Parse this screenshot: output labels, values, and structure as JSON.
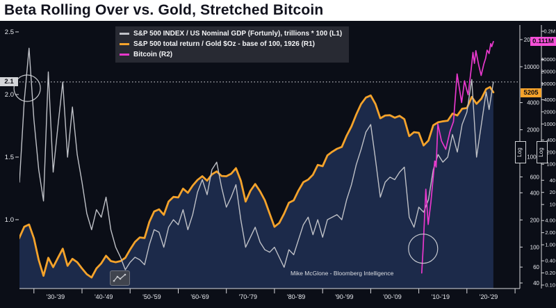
{
  "title": "Beta Rolling Over vs. Gold, Stretched Bitcoin",
  "attribution": "Mike McGlone - Bloomberg Intelligence",
  "colors": {
    "background": "#0b0e17",
    "title_bg": "#ffffff",
    "title_fg": "#12131e",
    "area_fill": "#1c2a4a",
    "gray_line": "#bfc1c7",
    "orange_line": "#f5a32b",
    "magenta_line": "#e838cc",
    "badge_left_bg": "#d4d5d9",
    "badge_r1_bg": "#f5a32b",
    "badge_r2_bg": "#f650d8",
    "axis_text": "#e9ebf0"
  },
  "legend": {
    "items": [
      {
        "label": "S&P 500 INDEX / US Nominal GDP (Fortunly), trillions * 100 (L1)",
        "color": "#bfc1c7"
      },
      {
        "label": "S&P 500 total return / Gold $Oz - base of 100, 1926 (R1)",
        "color": "#f5a32b"
      },
      {
        "label": "Bitcoin (R2)",
        "color": "#e838cc"
      }
    ]
  },
  "badges": {
    "left_value": "2.1",
    "r1_value": "5205",
    "r2_value": "0.111M"
  },
  "chart_data": {
    "type": "line",
    "title": "Beta Rolling Over vs. Gold, Stretched Bitcoin",
    "x_axis": {
      "domain": [
        1927,
        2031
      ],
      "ticks": [
        "'30-'39",
        "'40-'49",
        "'50-'59",
        "'60-'69",
        "'70-'79",
        "'80-'89",
        "'90-'99",
        "'00-'09",
        "'10-'19",
        "'20-'29"
      ],
      "tick_center_years": [
        1934.5,
        1944.5,
        1954.5,
        1964.5,
        1974.5,
        1984.5,
        1994.5,
        2004.5,
        2014.5,
        2024.5
      ],
      "boundary_years": [
        1930,
        1940,
        1950,
        1960,
        1970,
        1980,
        1990,
        2000,
        2010,
        2020,
        2030
      ]
    },
    "axes": {
      "left": {
        "scale": "linear",
        "domain": [
          0.45,
          2.555
        ],
        "ticks": [
          {
            "label": "2.5",
            "value": 2.5
          },
          {
            "label": "2.0",
            "value": 2.0
          },
          {
            "label": "1.5",
            "value": 1.5
          },
          {
            "label": "1.0",
            "value": 1.0
          }
        ]
      },
      "right1": {
        "scale": "log",
        "domain": [
          34.7,
          29000
        ],
        "scale_label": "Log",
        "ticks": [
          {
            "label": "20000",
            "value": 20000
          },
          {
            "label": "10000",
            "value": 10000
          },
          {
            "label": "4000",
            "value": 4000
          },
          {
            "label": "2000",
            "value": 2000
          },
          {
            "label": "1000",
            "value": 1000
          },
          {
            "label": "600",
            "value": 600
          },
          {
            "label": "400",
            "value": 400
          },
          {
            "label": "200",
            "value": 200
          },
          {
            "label": "100",
            "value": 100
          },
          {
            "label": "60",
            "value": 60
          },
          {
            "label": "40",
            "value": 40
          }
        ]
      },
      "right2": {
        "scale": "log",
        "domain": [
          0.082,
          286000
        ],
        "scale_label": "Log",
        "ticks": [
          {
            "label": "0.2M",
            "value": 200000
          },
          {
            "label": "40000",
            "value": 40000
          },
          {
            "label": "20000",
            "value": 20000
          },
          {
            "label": "10000",
            "value": 10000
          },
          {
            "label": "4000",
            "value": 4000
          },
          {
            "label": "2000",
            "value": 2000
          },
          {
            "label": "1000",
            "value": 1000
          },
          {
            "label": "400",
            "value": 400
          },
          {
            "label": "200",
            "value": 200
          },
          {
            "label": "100",
            "value": 100
          },
          {
            "label": "40",
            "value": 40
          },
          {
            "label": "20",
            "value": 20
          },
          {
            "label": "10",
            "value": 10
          },
          {
            "label": "4.00",
            "value": 4
          },
          {
            "label": "2.00",
            "value": 2
          },
          {
            "label": "1.00",
            "value": 1
          },
          {
            "label": "0.40",
            "value": 0.4
          },
          {
            "label": "0.20",
            "value": 0.2
          },
          {
            "label": "0.10",
            "value": 0.1
          }
        ]
      }
    },
    "reference_line": {
      "axis": "left",
      "value": 2.1,
      "style": "dotted",
      "color": "#e4e5e9"
    },
    "annotations": [
      {
        "type": "circle",
        "axis": "left",
        "year": 1928.6,
        "value": 2.05,
        "radius": 19
      },
      {
        "type": "circle",
        "axis": "right2",
        "year": 2010.9,
        "value": 0.8,
        "radius": 21
      }
    ],
    "last_values": {
      "left": "2.1",
      "right1": "5205",
      "right2": "0.111M"
    },
    "series": [
      {
        "id": "gold_ratio",
        "name": "S&P 500 total return / Gold $Oz - base of 100, 1926",
        "axis": "right1",
        "color": "#f5a32b",
        "width": 2.8,
        "fill": "#1c2a4a",
        "points": [
          [
            1926,
            100
          ],
          [
            1927,
            128
          ],
          [
            1928,
            168
          ],
          [
            1929,
            178
          ],
          [
            1930,
            125
          ],
          [
            1931,
            72
          ],
          [
            1932,
            48
          ],
          [
            1933,
            76
          ],
          [
            1934,
            60
          ],
          [
            1935,
            76
          ],
          [
            1936,
            96
          ],
          [
            1937,
            62
          ],
          [
            1938,
            74
          ],
          [
            1939,
            68
          ],
          [
            1940,
            58
          ],
          [
            1941,
            50
          ],
          [
            1942,
            46
          ],
          [
            1943,
            58
          ],
          [
            1944,
            66
          ],
          [
            1945,
            80
          ],
          [
            1946,
            70
          ],
          [
            1947,
            68
          ],
          [
            1948,
            70
          ],
          [
            1949,
            76
          ],
          [
            1950,
            94
          ],
          [
            1951,
            114
          ],
          [
            1952,
            128
          ],
          [
            1953,
            126
          ],
          [
            1954,
            190
          ],
          [
            1955,
            248
          ],
          [
            1956,
            262
          ],
          [
            1957,
            228
          ],
          [
            1958,
            320
          ],
          [
            1959,
            360
          ],
          [
            1960,
            355
          ],
          [
            1961,
            445
          ],
          [
            1962,
            400
          ],
          [
            1963,
            480
          ],
          [
            1964,
            555
          ],
          [
            1965,
            610
          ],
          [
            1966,
            545
          ],
          [
            1967,
            640
          ],
          [
            1968,
            690
          ],
          [
            1969,
            615
          ],
          [
            1970,
            610
          ],
          [
            1971,
            650
          ],
          [
            1972,
            750
          ],
          [
            1973,
            545
          ],
          [
            1974,
            320
          ],
          [
            1975,
            420
          ],
          [
            1976,
            500
          ],
          [
            1977,
            415
          ],
          [
            1978,
            330
          ],
          [
            1979,
            235
          ],
          [
            1980,
            168
          ],
          [
            1981,
            185
          ],
          [
            1982,
            235
          ],
          [
            1983,
            310
          ],
          [
            1984,
            330
          ],
          [
            1985,
            425
          ],
          [
            1986,
            525
          ],
          [
            1987,
            560
          ],
          [
            1988,
            635
          ],
          [
            1989,
            815
          ],
          [
            1990,
            790
          ],
          [
            1991,
            1040
          ],
          [
            1992,
            1140
          ],
          [
            1993,
            1230
          ],
          [
            1994,
            1290
          ],
          [
            1995,
            1720
          ],
          [
            1996,
            2180
          ],
          [
            1997,
            2950
          ],
          [
            1998,
            3850
          ],
          [
            1999,
            4550
          ],
          [
            2000,
            4800
          ],
          [
            2001,
            3850
          ],
          [
            2002,
            2680
          ],
          [
            2003,
            2880
          ],
          [
            2004,
            2900
          ],
          [
            2005,
            2720
          ],
          [
            2006,
            2850
          ],
          [
            2007,
            2620
          ],
          [
            2008,
            1700
          ],
          [
            2009,
            1880
          ],
          [
            2010,
            1850
          ],
          [
            2011,
            1340
          ],
          [
            2012,
            1520
          ],
          [
            2013,
            2240
          ],
          [
            2014,
            2420
          ],
          [
            2015,
            2480
          ],
          [
            2016,
            2520
          ],
          [
            2017,
            3020
          ],
          [
            2018,
            2880
          ],
          [
            2019,
            3420
          ],
          [
            2020,
            3480
          ],
          [
            2021,
            4620
          ],
          [
            2022,
            3880
          ],
          [
            2023,
            4420
          ],
          [
            2024,
            5650
          ],
          [
            2024.8,
            5950
          ],
          [
            2025.5,
            5205
          ]
        ]
      },
      {
        "id": "beta",
        "name": "S&P 500 INDEX / US Nominal GDP (Fortunly), trillions * 100",
        "axis": "left",
        "color": "#bfc1c7",
        "width": 1.4,
        "points": [
          [
            1927,
            1.3
          ],
          [
            1928,
            1.95
          ],
          [
            1929,
            2.37
          ],
          [
            1930,
            1.8
          ],
          [
            1931,
            1.4
          ],
          [
            1932,
            1.15
          ],
          [
            1933,
            2.18
          ],
          [
            1934,
            1.38
          ],
          [
            1935,
            1.75
          ],
          [
            1936,
            2.1
          ],
          [
            1937,
            1.5
          ],
          [
            1938,
            1.9
          ],
          [
            1939,
            1.52
          ],
          [
            1940,
            1.3
          ],
          [
            1941,
            1.05
          ],
          [
            1942,
            0.92
          ],
          [
            1943,
            1.08
          ],
          [
            1944,
            1.02
          ],
          [
            1945,
            1.18
          ],
          [
            1946,
            0.92
          ],
          [
            1947,
            0.78
          ],
          [
            1948,
            0.7
          ],
          [
            1949,
            0.6
          ],
          [
            1950,
            0.66
          ],
          [
            1951,
            0.7
          ],
          [
            1952,
            0.68
          ],
          [
            1953,
            0.64
          ],
          [
            1954,
            0.8
          ],
          [
            1955,
            0.92
          ],
          [
            1956,
            0.9
          ],
          [
            1957,
            0.78
          ],
          [
            1958,
            0.94
          ],
          [
            1959,
            1.0
          ],
          [
            1960,
            0.96
          ],
          [
            1961,
            1.08
          ],
          [
            1962,
            0.92
          ],
          [
            1963,
            1.04
          ],
          [
            1964,
            1.22
          ],
          [
            1965,
            1.32
          ],
          [
            1966,
            1.2
          ],
          [
            1967,
            1.4
          ],
          [
            1968,
            1.46
          ],
          [
            1969,
            1.26
          ],
          [
            1970,
            1.1
          ],
          [
            1971,
            1.18
          ],
          [
            1972,
            1.28
          ],
          [
            1973,
            1.0
          ],
          [
            1974,
            0.78
          ],
          [
            1975,
            0.86
          ],
          [
            1976,
            0.94
          ],
          [
            1977,
            0.82
          ],
          [
            1978,
            0.76
          ],
          [
            1979,
            0.74
          ],
          [
            1980,
            0.78
          ],
          [
            1981,
            0.7
          ],
          [
            1982,
            0.62
          ],
          [
            1983,
            0.76
          ],
          [
            1984,
            0.72
          ],
          [
            1985,
            0.84
          ],
          [
            1986,
            0.96
          ],
          [
            1987,
            1.02
          ],
          [
            1988,
            0.88
          ],
          [
            1989,
            1.0
          ],
          [
            1990,
            0.86
          ],
          [
            1991,
            1.0
          ],
          [
            1992,
            1.02
          ],
          [
            1993,
            1.04
          ],
          [
            1994,
            1.0
          ],
          [
            1995,
            1.16
          ],
          [
            1996,
            1.28
          ],
          [
            1997,
            1.44
          ],
          [
            1998,
            1.56
          ],
          [
            1999,
            1.7
          ],
          [
            2000,
            1.76
          ],
          [
            2001,
            1.48
          ],
          [
            2002,
            1.18
          ],
          [
            2003,
            1.3
          ],
          [
            2004,
            1.34
          ],
          [
            2005,
            1.32
          ],
          [
            2006,
            1.38
          ],
          [
            2007,
            1.42
          ],
          [
            2008,
            1.02
          ],
          [
            2009,
            0.94
          ],
          [
            2010,
            1.1
          ],
          [
            2011,
            1.06
          ],
          [
            2012,
            1.16
          ],
          [
            2013,
            1.4
          ],
          [
            2014,
            1.52
          ],
          [
            2015,
            1.46
          ],
          [
            2016,
            1.5
          ],
          [
            2017,
            1.68
          ],
          [
            2018,
            1.54
          ],
          [
            2019,
            1.76
          ],
          [
            2020,
            1.86
          ],
          [
            2021,
            2.12
          ],
          [
            2022,
            1.5
          ],
          [
            2023,
            1.76
          ],
          [
            2024,
            2.02
          ],
          [
            2024.6,
            1.88
          ],
          [
            2025.5,
            2.1
          ]
        ]
      },
      {
        "id": "bitcoin",
        "name": "Bitcoin",
        "axis": "right2",
        "color": "#e838cc",
        "width": 1.7,
        "points": [
          [
            2010.6,
            0.2
          ],
          [
            2010.9,
            0.8
          ],
          [
            2011.45,
            24
          ],
          [
            2011.95,
            3.2
          ],
          [
            2012.5,
            11
          ],
          [
            2013.3,
            120
          ],
          [
            2013.6,
            85
          ],
          [
            2013.95,
            1000
          ],
          [
            2014.7,
            380
          ],
          [
            2015.6,
            235
          ],
          [
            2016.5,
            660
          ],
          [
            2017.2,
            1150
          ],
          [
            2017.95,
            17500
          ],
          [
            2018.9,
            3400
          ],
          [
            2019.5,
            11800
          ],
          [
            2019.95,
            7100
          ],
          [
            2020.25,
            5300
          ],
          [
            2020.9,
            24000
          ],
          [
            2021.25,
            60000
          ],
          [
            2021.55,
            32000
          ],
          [
            2021.85,
            66000
          ],
          [
            2022.45,
            29000
          ],
          [
            2022.95,
            16000
          ],
          [
            2023.5,
            30500
          ],
          [
            2023.9,
            43000
          ],
          [
            2024.2,
            68000
          ],
          [
            2024.6,
            56000
          ],
          [
            2024.95,
            99000
          ],
          [
            2025.15,
            83000
          ],
          [
            2025.5,
            111000
          ]
        ]
      }
    ]
  }
}
